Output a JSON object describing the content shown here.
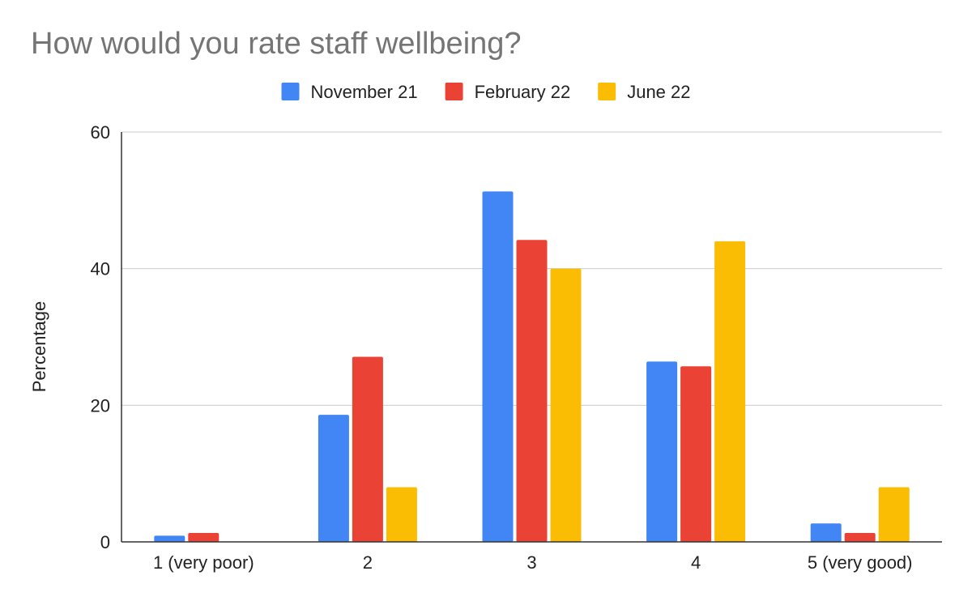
{
  "chart_data": {
    "type": "bar",
    "title": "How would you rate staff wellbeing?",
    "xlabel": "",
    "ylabel": "Percentage",
    "ylim": [
      0,
      60
    ],
    "yticks": [
      0,
      20,
      40,
      60
    ],
    "grid": true,
    "legend_position": "top-center",
    "categories": [
      "1 (very poor)",
      "2",
      "3",
      "4",
      "5 (very good)"
    ],
    "series": [
      {
        "name": "November 21",
        "color": "#4285F4",
        "values": [
          0.9,
          18.6,
          51.3,
          26.4,
          2.7
        ]
      },
      {
        "name": "February 22",
        "color": "#EA4335",
        "values": [
          1.3,
          27.1,
          44.2,
          25.7,
          1.3
        ]
      },
      {
        "name": "June 22",
        "color": "#FBBC04",
        "values": [
          0,
          8.0,
          40.0,
          44.0,
          8.0
        ]
      }
    ]
  }
}
